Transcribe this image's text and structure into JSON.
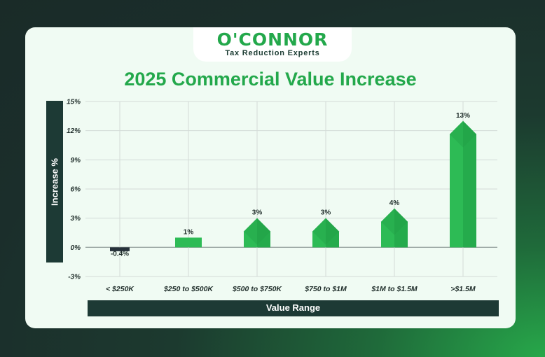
{
  "brand": {
    "name": "O'CONNOR",
    "tagline": "Tax Reduction Experts"
  },
  "colors": {
    "accent": "#23a84b",
    "bar_light": "#2dbb55",
    "bar_dark": "#1f9e45",
    "dark": "#1d3a35"
  },
  "chart_data": {
    "type": "bar",
    "title": "2025 Commercial Value Increase",
    "xlabel": "Value Range",
    "ylabel": "Increase %",
    "categories": [
      "< $250K",
      "$250 to $500K",
      "$500 to $750K",
      "$750 to $1M",
      "$1M to $1.5M",
      ">$1.5M"
    ],
    "values": [
      -0.4,
      1,
      3,
      3,
      4,
      13
    ],
    "value_labels": [
      "-0.4%",
      "1%",
      "3%",
      "3%",
      "4%",
      "13%"
    ],
    "ylim": [
      -3,
      15
    ],
    "yticks": [
      15,
      12,
      9,
      6,
      3,
      0,
      -3
    ],
    "ytick_labels": [
      "15%",
      "12%",
      "9%",
      "6%",
      "3%",
      "0%",
      "-3%"
    ],
    "grid": true,
    "legend": "none"
  }
}
